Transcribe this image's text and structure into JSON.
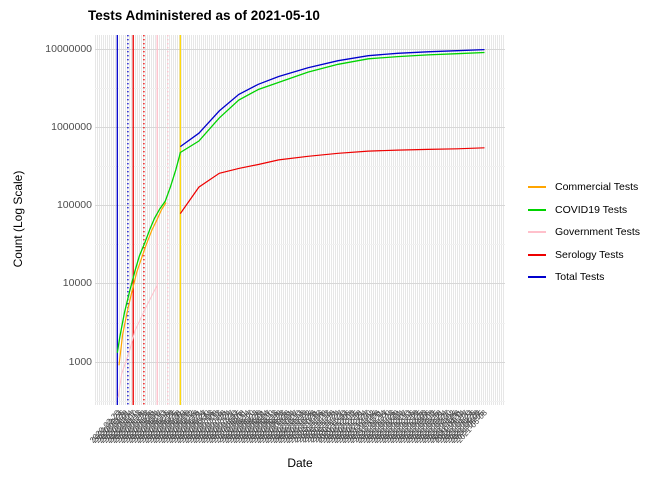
{
  "title": "Tests Administered as of 2021-05-10",
  "axes": {
    "x_label": "Date",
    "y_label": "Count (Log Scale)",
    "y_tick_labels": [
      "1000",
      "10000",
      "100000",
      "1000000",
      "10000000"
    ],
    "x_tick_start": "2020-03-20",
    "x_tick_end": "2021-05-10",
    "x_tick_step_days": 3
  },
  "legend": {
    "items": [
      {
        "label": "Commercial Tests",
        "color": "#FFA500"
      },
      {
        "label": "COVID19 Tests",
        "color": "#00D300"
      },
      {
        "label": "Government Tests",
        "color": "#FFC0CB"
      },
      {
        "label": "Serology Tests",
        "color": "#EE0000"
      },
      {
        "label": "Total Tests",
        "color": "#0000CD"
      }
    ]
  },
  "chart_data": {
    "type": "line",
    "title": "Tests Administered as of 2021-05-10",
    "xlabel": "Date",
    "ylabel": "Count (Log Scale)",
    "y_scale": "log10",
    "grid": "on",
    "legend_position": "right",
    "x_domain": [
      "2020-03-20",
      "2021-05-10"
    ],
    "y_domain": [
      280,
      14900000
    ],
    "y_major_ticks": [
      1000,
      10000,
      100000,
      1000000,
      10000000
    ],
    "y_minor_ticks": [
      316,
      3162,
      31623,
      316228,
      3162278
    ],
    "x_inset_fraction": 0.05,
    "series": [
      {
        "name": "Government Tests",
        "color": "#FFC0CB",
        "width": 1,
        "points": [
          [
            "2020-03-23",
            350
          ],
          [
            "2020-03-27",
            700
          ],
          [
            "2020-04-05",
            1400
          ],
          [
            "2020-04-11",
            2500
          ],
          [
            "2020-04-22",
            4600
          ],
          [
            "2020-04-28",
            6300
          ],
          [
            "2020-05-06",
            9500
          ]
        ]
      },
      {
        "name": "COVID19 Tests",
        "color": "#00D300",
        "width": 1.3,
        "points": [
          [
            "2020-03-22",
            1300
          ],
          [
            "2020-03-25",
            2100
          ],
          [
            "2020-03-30",
            4200
          ],
          [
            "2020-04-05",
            8000
          ],
          [
            "2020-04-11",
            14500
          ],
          [
            "2020-04-16",
            22500
          ],
          [
            "2020-04-22",
            33000
          ],
          [
            "2020-04-28",
            50000
          ],
          [
            "2020-05-03",
            68000
          ],
          [
            "2020-05-09",
            90000
          ],
          [
            "2020-05-15",
            112000
          ],
          [
            "2020-05-21",
            172000
          ],
          [
            "2020-05-27",
            283000
          ],
          [
            "2020-05-31",
            420000
          ],
          [
            "2020-06-01",
            470000
          ],
          [
            "2020-06-22",
            660000
          ],
          [
            "2020-07-15",
            1300000
          ],
          [
            "2020-08-06",
            2200000
          ],
          [
            "2020-08-28",
            3000000
          ],
          [
            "2020-09-20",
            3700000
          ],
          [
            "2020-10-23",
            5000000
          ],
          [
            "2020-11-26",
            6300000
          ],
          [
            "2020-12-30",
            7400000
          ],
          [
            "2021-02-01",
            7900000
          ],
          [
            "2021-03-07",
            8300000
          ],
          [
            "2021-04-09",
            8600000
          ],
          [
            "2021-05-10",
            8900000
          ]
        ]
      },
      {
        "name": "Commercial Tests",
        "color": "#FFA500",
        "width": 1.2,
        "points": [
          [
            "2020-03-24",
            900
          ],
          [
            "2020-03-28",
            2200
          ],
          [
            "2020-04-02",
            4200
          ],
          [
            "2020-04-07",
            7500
          ],
          [
            "2020-04-13",
            14000
          ],
          [
            "2020-04-19",
            22000
          ],
          [
            "2020-04-24",
            32000
          ],
          [
            "2020-04-30",
            48000
          ],
          [
            "2020-05-06",
            66000
          ],
          [
            "2020-05-11",
            88000
          ],
          [
            "2020-05-16",
            108000
          ]
        ]
      },
      {
        "name": "Serology Tests",
        "color": "#EE0000",
        "width": 1.2,
        "points": [
          [
            "2020-06-01",
            78000
          ],
          [
            "2020-06-22",
            170000
          ],
          [
            "2020-07-15",
            255000
          ],
          [
            "2020-08-06",
            295000
          ],
          [
            "2020-08-28",
            330000
          ],
          [
            "2020-09-20",
            378000
          ],
          [
            "2020-10-23",
            420000
          ],
          [
            "2020-11-26",
            460000
          ],
          [
            "2020-12-30",
            490000
          ],
          [
            "2021-02-01",
            505000
          ],
          [
            "2021-03-07",
            515000
          ],
          [
            "2021-04-09",
            525000
          ],
          [
            "2021-05-10",
            540000
          ]
        ]
      },
      {
        "name": "Total Tests",
        "color": "#0000CD",
        "width": 1.3,
        "points": [
          [
            "2020-06-01",
            560000
          ],
          [
            "2020-06-22",
            830000
          ],
          [
            "2020-07-15",
            1600000
          ],
          [
            "2020-08-06",
            2600000
          ],
          [
            "2020-08-28",
            3500000
          ],
          [
            "2020-09-20",
            4400000
          ],
          [
            "2020-10-23",
            5700000
          ],
          [
            "2020-11-26",
            7000000
          ],
          [
            "2020-12-30",
            8100000
          ],
          [
            "2021-02-01",
            8700000
          ],
          [
            "2021-03-07",
            9100000
          ],
          [
            "2021-04-09",
            9400000
          ],
          [
            "2021-05-10",
            9700000
          ]
        ]
      }
    ],
    "vlines": [
      {
        "date": "2020-03-22",
        "color": "#0000CD",
        "style": "solid"
      },
      {
        "date": "2020-04-03",
        "color": "#0000CD",
        "style": "dotted"
      },
      {
        "date": "2020-04-09",
        "color": "#EE0000",
        "style": "solid"
      },
      {
        "date": "2020-04-21",
        "color": "#EE0000",
        "style": "dotted"
      },
      {
        "date": "2020-05-06",
        "color": "#FFC0CB",
        "style": "solid"
      },
      {
        "date": "2020-05-18",
        "color": "#FFC0CB",
        "style": "dotted"
      },
      {
        "date": "2020-06-01",
        "color": "#FFD700",
        "style": "solid"
      }
    ]
  }
}
